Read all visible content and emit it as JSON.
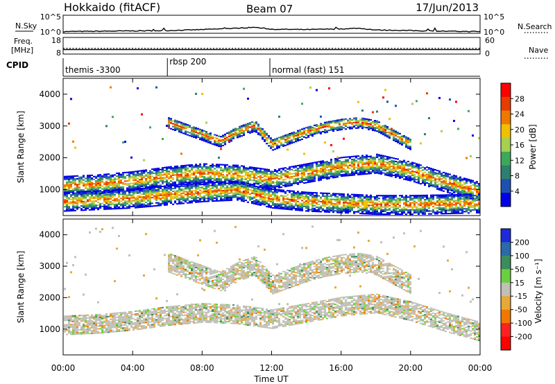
{
  "header": {
    "station": "Hokkaido (fitACF)",
    "beam": "Beam 07",
    "date": "17/Jun/2013"
  },
  "colors": {
    "power": [
      "#0000e6",
      "#1e50b4",
      "#2e7f6e",
      "#3ea85a",
      "#a6d050",
      "#f0c000",
      "#f07800",
      "#e63c00",
      "#ff0000"
    ],
    "velocity": [
      "#1c2ad8",
      "#2a6aa8",
      "#3c8c5c",
      "#6ad040",
      "#c0c0b8",
      "#e8a838",
      "#f07800",
      "#ff2020",
      "#ff0000"
    ]
  },
  "chart_data": [
    {
      "type": "line",
      "name": "noise",
      "left_label": "N.Sky",
      "right_label": "N.Search",
      "left_ticks": [
        "10^5",
        "10^0"
      ],
      "right_ticks": [
        "10^5",
        "10^0"
      ],
      "x": [
        0,
        2,
        4,
        6,
        8,
        10,
        11,
        12,
        14,
        16,
        17,
        18,
        20,
        22,
        24
      ],
      "y_log10": [
        0.3,
        0.4,
        0.5,
        0.6,
        0.9,
        1.3,
        1.6,
        1.0,
        0.9,
        1.1,
        1.3,
        0.8,
        0.6,
        0.4,
        0.3
      ]
    },
    {
      "type": "line",
      "name": "frequency",
      "left_label": "Freq.",
      "left_unit": "[MHz]",
      "right_label": "Nave",
      "left_ticks": [
        "18",
        "8"
      ],
      "right_ticks": [
        "60",
        "0"
      ],
      "freq_mhz": 10.5,
      "nave": 20
    },
    {
      "type": "table",
      "name": "cpid",
      "label": "CPID",
      "segments": [
        {
          "start": 0.0,
          "end": 6.0,
          "label": "themis -3300"
        },
        {
          "start": 6.0,
          "end": 11.9,
          "label": "rbsp 200"
        },
        {
          "start": 11.9,
          "end": 24.0,
          "label": "normal (fast) 151"
        }
      ]
    },
    {
      "type": "heatmap",
      "name": "power",
      "ylabel": "Slant Range [km]",
      "colorbar_label": "Power [dB]",
      "colorbar_ticks": [
        "28",
        "24",
        "20",
        "16",
        "12",
        "8",
        "4"
      ],
      "y_ticks": [
        "4000",
        "3000",
        "2000",
        "1000"
      ],
      "ylim": [
        180,
        4500
      ],
      "bands": [
        {
          "x": [
            0,
            2,
            4,
            6,
            8,
            10,
            12,
            14,
            16,
            18,
            20,
            22,
            24
          ],
          "y": [
            1100,
            1150,
            1250,
            1400,
            1500,
            1450,
            1300,
            1500,
            1700,
            1800,
            1550,
            1200,
            900
          ]
        },
        {
          "x": [
            0,
            2,
            4,
            6,
            8,
            10,
            12,
            14,
            16,
            18,
            20,
            22,
            24
          ],
          "y": [
            600,
            650,
            700,
            800,
            900,
            950,
            700,
            600,
            550,
            500,
            500,
            520,
            550
          ]
        },
        {
          "x": [
            6,
            7,
            8,
            9,
            10,
            11,
            12,
            13,
            14,
            15,
            16,
            17,
            18,
            19,
            20
          ],
          "y": [
            3100,
            2900,
            2700,
            2500,
            2800,
            3000,
            2400,
            2600,
            2800,
            2950,
            3050,
            3100,
            3000,
            2700,
            2400
          ]
        }
      ]
    },
    {
      "type": "heatmap",
      "name": "velocity",
      "ylabel": "Slant Range [km]",
      "colorbar_label": "Velocity [m s⁻¹]",
      "colorbar_ticks": [
        "200",
        "100",
        "50",
        "15",
        "-15",
        "-50",
        "-100",
        "-200"
      ],
      "y_ticks": [
        "4000",
        "3000",
        "2000",
        "1000"
      ],
      "ylim": [
        180,
        4500
      ],
      "bands": [
        {
          "x": [
            0,
            2,
            4,
            6,
            8,
            10,
            12,
            14,
            16,
            18,
            20,
            22,
            24
          ],
          "y": [
            1100,
            1150,
            1250,
            1400,
            1500,
            1450,
            1300,
            1500,
            1700,
            1800,
            1550,
            1200,
            900
          ]
        },
        {
          "x": [
            6,
            7,
            8,
            9,
            10,
            11,
            12,
            13,
            14,
            15,
            16,
            17,
            18,
            19,
            20
          ],
          "y": [
            3100,
            2900,
            2700,
            2500,
            2800,
            3000,
            2400,
            2600,
            2800,
            2950,
            3050,
            3100,
            3000,
            2700,
            2400
          ]
        }
      ]
    },
    {
      "type": "line",
      "name": "time-axis",
      "xlabel": "Time UT",
      "xlim": [
        0,
        24
      ],
      "x_ticks": [
        "00:00",
        "04:00",
        "08:00",
        "12:00",
        "16:00",
        "20:00",
        "00:00"
      ]
    }
  ]
}
